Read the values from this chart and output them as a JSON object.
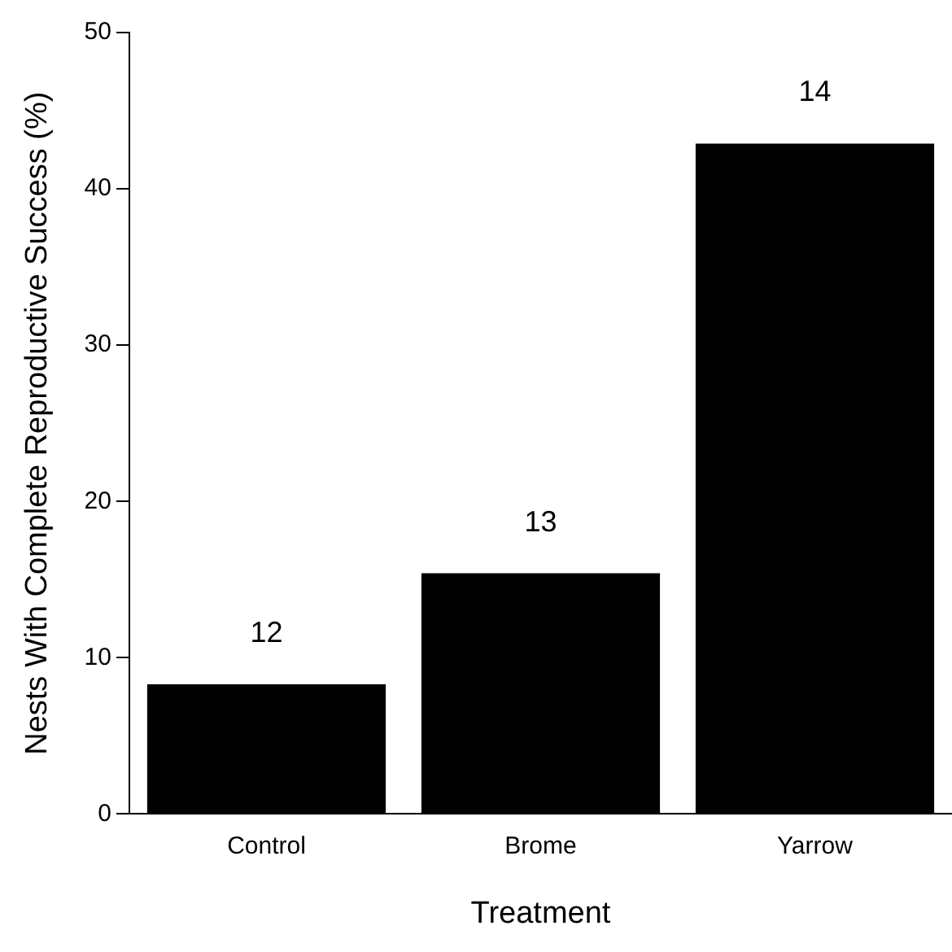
{
  "chart_data": {
    "type": "bar",
    "xlabel": "Treatment",
    "ylabel": "Nests With Complete Reproductive Success (%)",
    "categories": [
      "Control",
      "Brome",
      "Yarrow"
    ],
    "values": [
      8.3,
      15.4,
      42.9
    ],
    "color": "#000000",
    "ylim": [
      0,
      50
    ],
    "yticks": [
      0,
      10,
      20,
      30,
      40,
      50
    ],
    "grid": false,
    "legend": false,
    "annotations": [
      {
        "text": "12",
        "x": "Control",
        "y": 8.3
      },
      {
        "text": "13",
        "x": "Brome",
        "y": 15.4
      },
      {
        "text": "14",
        "x": "Yarrow",
        "y": 42.9
      }
    ]
  }
}
